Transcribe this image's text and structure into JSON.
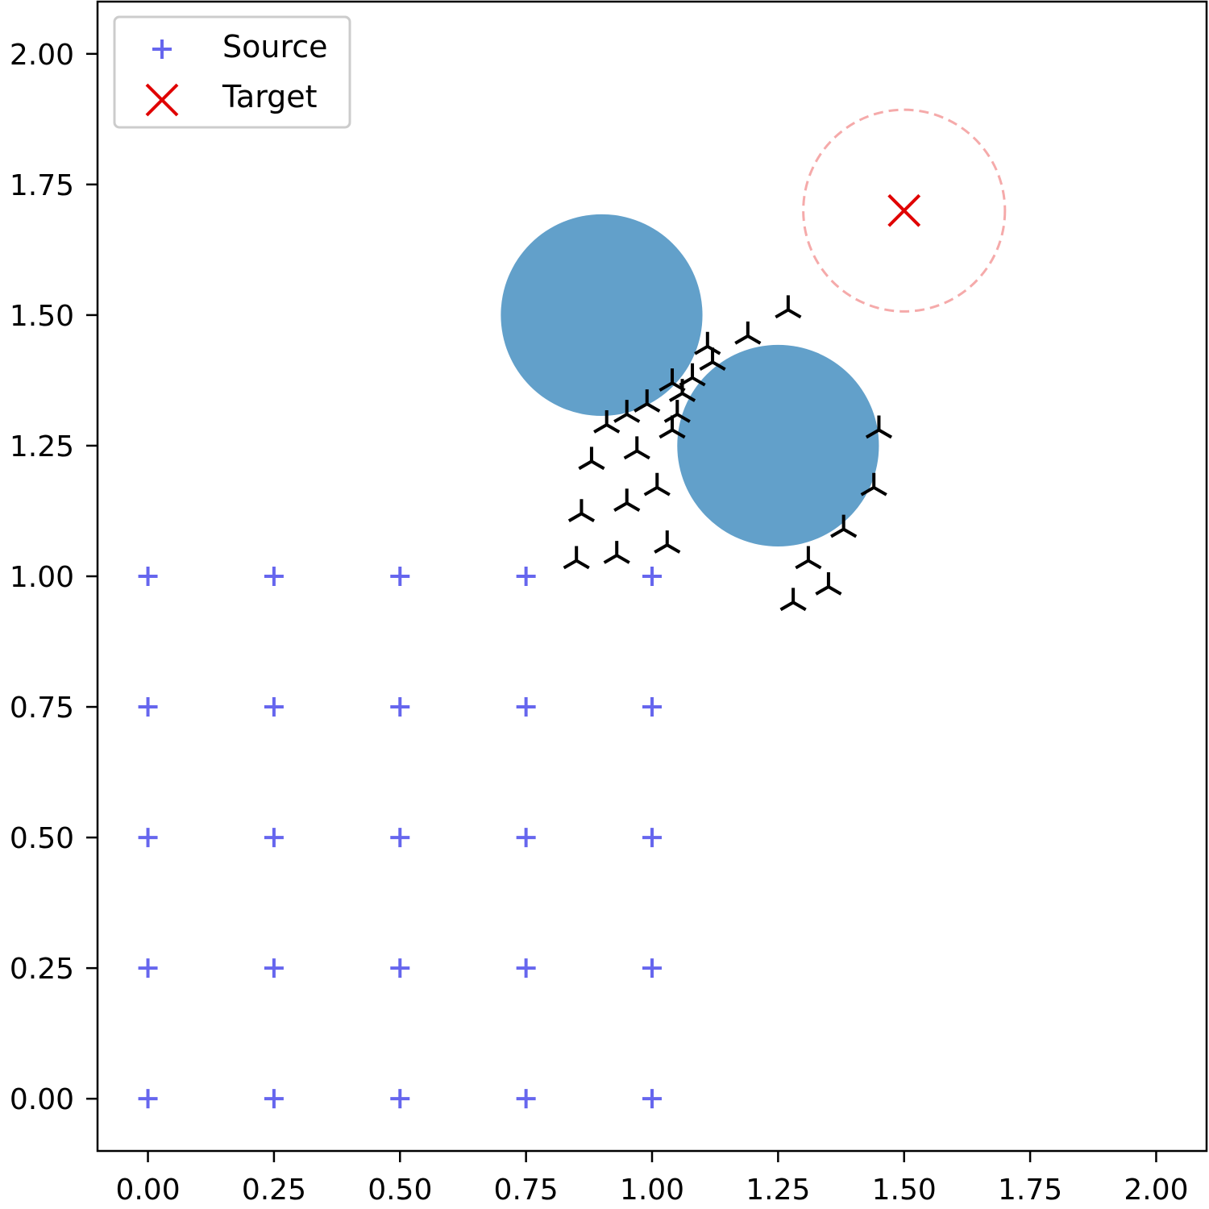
{
  "chart_data": {
    "type": "scatter",
    "title": "",
    "xlabel": "",
    "ylabel": "",
    "xlim": [
      -0.1,
      2.1
    ],
    "ylim": [
      -0.1,
      2.1
    ],
    "grid": false,
    "x_ticks": [
      "0.00",
      "0.25",
      "0.50",
      "0.75",
      "1.00",
      "1.25",
      "1.50",
      "1.75",
      "2.00"
    ],
    "y_ticks": [
      "0.00",
      "0.25",
      "0.50",
      "0.75",
      "1.00",
      "1.25",
      "1.50",
      "1.75",
      "2.00"
    ],
    "legend": {
      "location": "upper-left",
      "entries": [
        {
          "label": "Source",
          "marker": "plus",
          "color": "#6666ee"
        },
        {
          "label": "Target",
          "marker": "x",
          "color": "#e00000"
        }
      ]
    },
    "series": [
      {
        "name": "Source",
        "marker": "plus",
        "color": "#6666ee",
        "points": [
          [
            0.0,
            0.0
          ],
          [
            0.25,
            0.0
          ],
          [
            0.5,
            0.0
          ],
          [
            0.75,
            0.0
          ],
          [
            1.0,
            0.0
          ],
          [
            0.0,
            0.25
          ],
          [
            0.25,
            0.25
          ],
          [
            0.5,
            0.25
          ],
          [
            0.75,
            0.25
          ],
          [
            1.0,
            0.25
          ],
          [
            0.0,
            0.5
          ],
          [
            0.25,
            0.5
          ],
          [
            0.5,
            0.5
          ],
          [
            0.75,
            0.5
          ],
          [
            1.0,
            0.5
          ],
          [
            0.0,
            0.75
          ],
          [
            0.25,
            0.75
          ],
          [
            0.5,
            0.75
          ],
          [
            0.75,
            0.75
          ],
          [
            1.0,
            0.75
          ],
          [
            0.0,
            1.0
          ],
          [
            0.25,
            1.0
          ],
          [
            0.5,
            1.0
          ],
          [
            0.75,
            1.0
          ],
          [
            1.0,
            1.0
          ]
        ]
      },
      {
        "name": "Target",
        "marker": "x",
        "color": "#e00000",
        "points": [
          [
            1.5,
            1.7
          ]
        ]
      },
      {
        "marker": "tri",
        "color": "#000000",
        "points": [
          [
            0.85,
            1.03
          ],
          [
            0.93,
            1.04
          ],
          [
            1.03,
            1.06
          ],
          [
            0.86,
            1.12
          ],
          [
            0.95,
            1.14
          ],
          [
            1.01,
            1.17
          ],
          [
            0.88,
            1.22
          ],
          [
            0.97,
            1.24
          ],
          [
            1.04,
            1.28
          ],
          [
            0.91,
            1.29
          ],
          [
            0.95,
            1.31
          ],
          [
            0.99,
            1.33
          ],
          [
            1.05,
            1.31
          ],
          [
            1.06,
            1.35
          ],
          [
            1.04,
            1.37
          ],
          [
            1.08,
            1.38
          ],
          [
            1.12,
            1.41
          ],
          [
            1.11,
            1.44
          ],
          [
            1.19,
            1.46
          ],
          [
            1.27,
            1.51
          ],
          [
            1.45,
            1.28
          ],
          [
            1.44,
            1.17
          ],
          [
            1.38,
            1.09
          ],
          [
            1.31,
            1.03
          ],
          [
            1.35,
            0.98
          ],
          [
            1.28,
            0.95
          ]
        ]
      }
    ],
    "obstacles": [
      {
        "cx": 0.9,
        "cy": 1.5,
        "r": 0.2,
        "color": "#62a0ca"
      },
      {
        "cx": 1.25,
        "cy": 1.25,
        "r": 0.2,
        "color": "#62a0ca"
      }
    ],
    "target_region": {
      "cx": 1.5,
      "cy": 1.7,
      "r": 0.2,
      "color": "#f5aaaa",
      "style": "dashed"
    }
  }
}
